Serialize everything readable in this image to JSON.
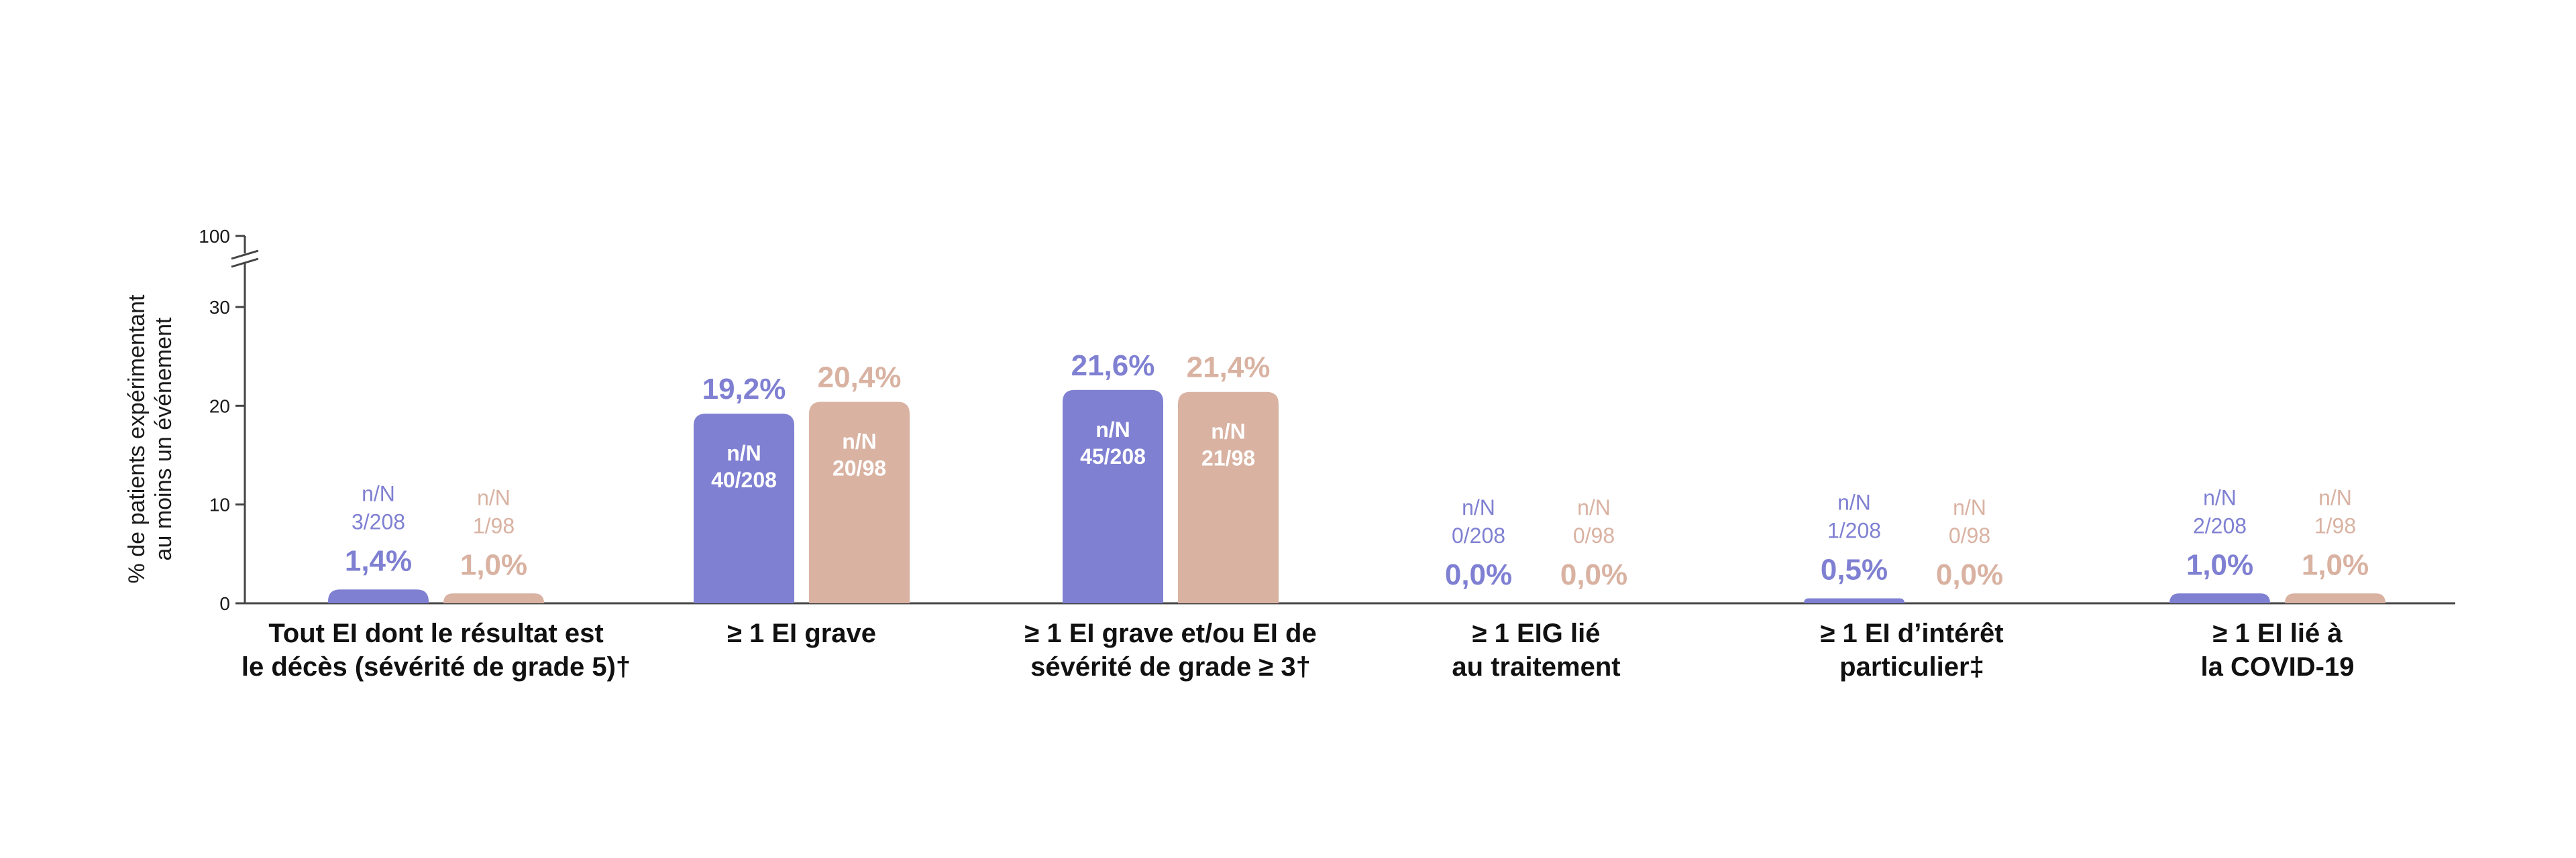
{
  "chart_data": {
    "type": "bar",
    "ylabel_lines": [
      "% de patients expérimentant",
      "au moins un événement"
    ],
    "y_ticks": [
      "0",
      "10",
      "20",
      "30",
      "100"
    ],
    "ylim": [
      0,
      30
    ],
    "y_break_top": 100,
    "categories": [
      [
        "Tout EI dont le résultat est",
        "le décès (sévérité de grade 5)†"
      ],
      [
        "≥ 1 EI grave"
      ],
      [
        "≥ 1 EI grave et/ou EI de",
        "sévérité de grade ≥ 3†"
      ],
      [
        "≥ 1 EIG lié",
        "au traitement"
      ],
      [
        "≥ 1 EI d’intérêt",
        "particulier‡"
      ],
      [
        "≥ 1 EI lié à",
        "la COVID-19"
      ]
    ],
    "series": [
      {
        "color": "#7f80d2",
        "values": [
          1.4,
          19.2,
          21.6,
          0.0,
          0.5,
          1.0
        ],
        "value_labels": [
          "1,4%",
          "19,2%",
          "21,6%",
          "0,0%",
          "0,5%",
          "1,0%"
        ],
        "nn_labels": [
          "3/208",
          "40/208",
          "45/208",
          "0/208",
          "1/208",
          "2/208"
        ]
      },
      {
        "color": "#d9b2a2",
        "values": [
          1.0,
          20.4,
          21.4,
          0.0,
          0.0,
          1.0
        ],
        "value_labels": [
          "1,0%",
          "20,4%",
          "21,4%",
          "0,0%",
          "0,0%",
          "1,0%"
        ],
        "nn_labels": [
          "1/98",
          "20/98",
          "21/98",
          "0/98",
          "0/98",
          "1/98"
        ]
      }
    ],
    "nn_header": "n/N",
    "grid": false,
    "legend": "none"
  }
}
